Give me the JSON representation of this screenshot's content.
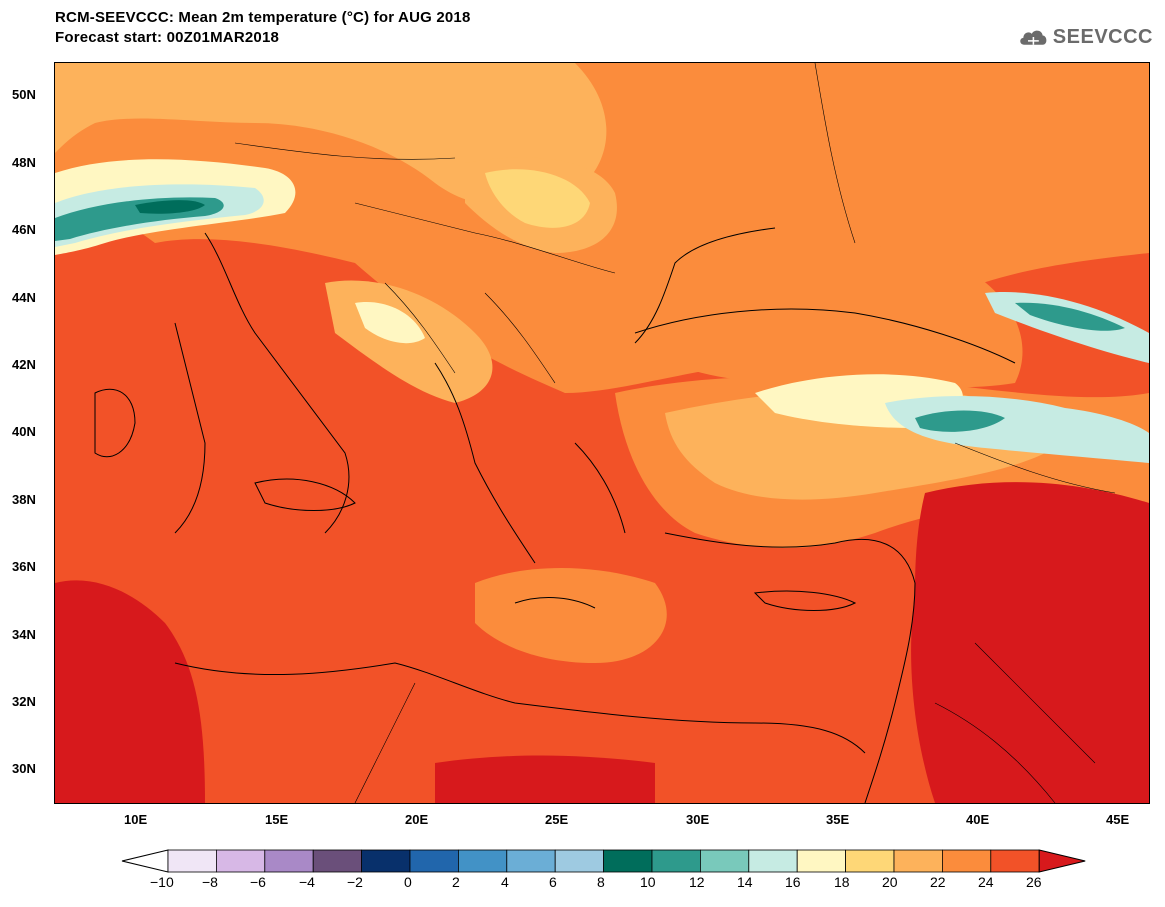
{
  "header": {
    "title": "RCM-SEEVCCC: Mean 2m temperature (°C) for AUG 2018",
    "subtitle": "Forecast start: 00Z01MAR2018",
    "logo_text": "SEEVCCC"
  },
  "map": {
    "lon_range": [
      7,
      46
    ],
    "lat_range": [
      29,
      51
    ],
    "lat_ticks": [
      "50N",
      "48N",
      "46N",
      "44N",
      "42N",
      "40N",
      "38N",
      "36N",
      "34N",
      "32N",
      "30N"
    ],
    "lon_ticks": [
      "10E",
      "15E",
      "20E",
      "25E",
      "30E",
      "35E",
      "40E",
      "45E"
    ]
  },
  "colorbar": {
    "labels": [
      "−10",
      "−8",
      "−6",
      "−4",
      "−2",
      "0",
      "2",
      "4",
      "6",
      "8",
      "10",
      "12",
      "14",
      "16",
      "18",
      "20",
      "22",
      "24",
      "26"
    ],
    "colors": [
      "#f0e6f6",
      "#d7b8e6",
      "#a989c7",
      "#6a4f7a",
      "#08306b",
      "#2166ac",
      "#4292c6",
      "#6baed6",
      "#9ecae1",
      "#006d5b",
      "#2e9a8c",
      "#79c9bb",
      "#c6ebe3",
      "#fff7c2",
      "#fed777",
      "#fdb25b",
      "#fb8c3c",
      "#f25228"
    ],
    "under_color": "#ffffff",
    "over_color": "#d7191c"
  }
}
